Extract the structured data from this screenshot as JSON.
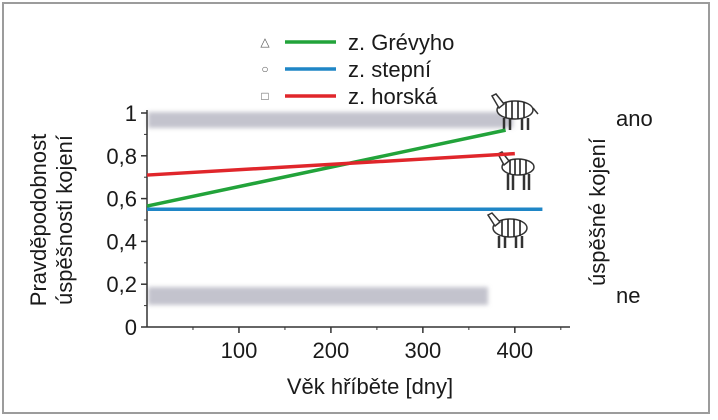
{
  "chart_data": {
    "type": "line",
    "xlabel": "Věk hříběte [dny]",
    "ylabel": [
      "Pravděpodobnost",
      "úspěšnosti kojení"
    ],
    "y2label": "úspěšné kojení",
    "y2_ticks": [
      "ano",
      "ne"
    ],
    "xlim": [
      0,
      460
    ],
    "ylim": [
      0,
      1
    ],
    "x_ticks": [
      100,
      200,
      300,
      400
    ],
    "y_ticks": [
      {
        "value": 0,
        "label": "0"
      },
      {
        "value": 0.2,
        "label": "0,2"
      },
      {
        "value": 0.4,
        "label": "0,4"
      },
      {
        "value": 0.6,
        "label": "0,6"
      },
      {
        "value": 0.8,
        "label": "0,8"
      },
      {
        "value": 1,
        "label": "1"
      }
    ],
    "legend_placement": "top",
    "series": [
      {
        "name": "z. Grévyho",
        "marker": "△",
        "color": "#22a33a",
        "x": [
          0,
          390
        ],
        "y": [
          0.565,
          0.92
        ]
      },
      {
        "name": "z. stepní",
        "marker": "○",
        "color": "#1f86c6",
        "x": [
          0,
          430
        ],
        "y": [
          0.55,
          0.55
        ]
      },
      {
        "name": "z. horská",
        "marker": "□",
        "color": "#e0262b",
        "x": [
          0,
          400
        ],
        "y": [
          0.71,
          0.81
        ]
      }
    ]
  }
}
